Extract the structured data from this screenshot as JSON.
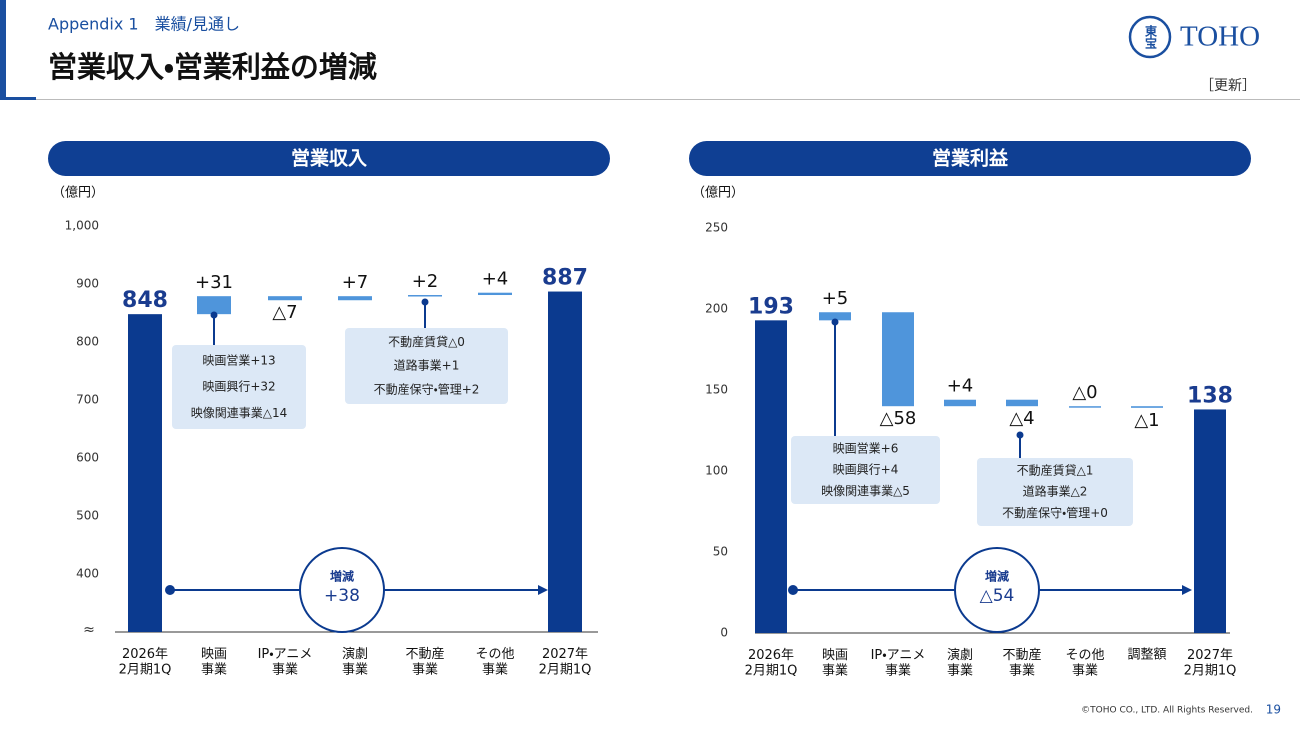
{
  "header": {
    "appendix": "Appendix 1　業績/見通し",
    "title": "営業収入・営業利益の増減",
    "logo_mark": "東宝",
    "logo": "TOHO",
    "update_tag": "［更新］"
  },
  "footer": {
    "copyright": "©TOHO CO., LTD. All Rights Reserved.",
    "page": "19"
  },
  "chart_data": [
    {
      "type": "waterfall",
      "title": "営業収入",
      "unit": "（億円）",
      "categories": [
        "2026年\n2月期1Q",
        "映画\n事業",
        "IP・アニメ\n事業",
        "演劇\n事業",
        "不動産\n事業",
        "その他\n事業",
        "2027年\n2月期1Q"
      ],
      "values": [
        848,
        31,
        -7,
        7,
        2,
        4,
        887
      ],
      "value_labels": [
        "848",
        "+31",
        "△7",
        "+7",
        "+2",
        "+4",
        "887"
      ],
      "measure": [
        "total",
        "relative",
        "relative",
        "relative",
        "relative",
        "relative",
        "total"
      ],
      "colors": {
        "total": "#0b3a8f",
        "delta": "#4f95db"
      },
      "ylim": [
        300,
        1000
      ],
      "yticks": [
        400,
        500,
        600,
        700,
        800,
        900,
        {
          "value": 1000,
          "label": "1,000"
        }
      ],
      "axis_break": "≈",
      "callouts": [
        [
          "映画営業+13",
          "映画興行+32",
          "映像関連事業△14"
        ],
        [
          "不動産賃貸△0",
          "道路事業+1",
          "不動産保守・管理+2"
        ]
      ],
      "change_label": "増減",
      "change_value": "+38"
    },
    {
      "type": "waterfall",
      "title": "営業利益",
      "unit": "（億円）",
      "categories": [
        "2026年\n2月期1Q",
        "映画\n事業",
        "IP・アニメ\n事業",
        "演劇\n事業",
        "不動産\n事業",
        "その他\n事業",
        "調整額",
        "2027年\n2月期1Q"
      ],
      "values": [
        193,
        5,
        -58,
        4,
        -4,
        0,
        -1,
        138
      ],
      "value_labels": [
        "193",
        "+5",
        "△58",
        "+4",
        "△4",
        "△0",
        "△1",
        "138"
      ],
      "measure": [
        "total",
        "relative",
        "relative",
        "relative",
        "relative",
        "relative",
        "relative",
        "total"
      ],
      "colors": {
        "total": "#0b3a8f",
        "delta": "#4f95db"
      },
      "ylim": [
        0,
        250
      ],
      "yticks": [
        0,
        50,
        100,
        150,
        200,
        250
      ],
      "callouts": [
        [
          "映画営業+6",
          "映画興行+4",
          "映像関連事業△5"
        ],
        [
          "不動産賃貸△1",
          "道路事業△2",
          "不動産保守・管理+0"
        ]
      ],
      "change_label": "増減",
      "change_value": "△54"
    }
  ]
}
